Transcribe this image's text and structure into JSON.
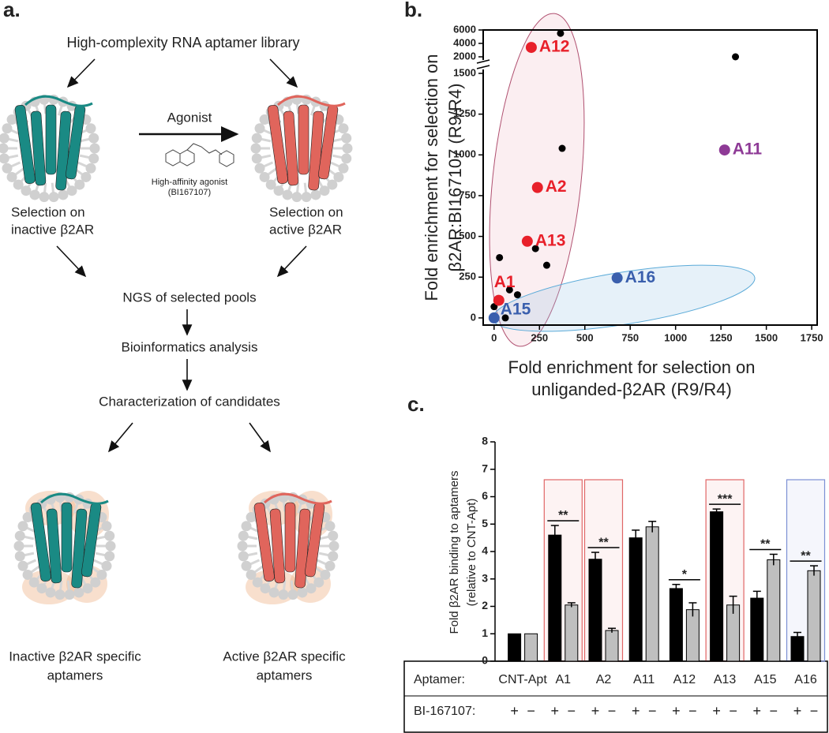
{
  "diagram": {
    "panel_label": "a.",
    "library": "High-complexity RNA aptamer library",
    "agonist": "Agonist",
    "agonist_caption": [
      "High-affinity agonist",
      "(BI167107)"
    ],
    "inactive_selection": [
      "Selection on",
      "inactive β2AR"
    ],
    "active_selection": [
      "Selection on",
      "active β2AR"
    ],
    "steps": [
      "NGS of selected pools",
      "Bioinformatics analysis",
      "Characterization of candidates"
    ],
    "inactive_result": [
      "Inactive β2AR specific",
      "aptamers"
    ],
    "active_result": [
      "Active β2AR specific",
      "aptamers"
    ]
  },
  "chart_data": [
    {
      "type": "scatter",
      "panel_label": "b.",
      "x_label": [
        "Fold enrichment for selection on",
        "unliganded-β2AR (R9/R4)"
      ],
      "y_label": [
        "Fold enrichment for selection on",
        "β2AR:BI167107 (R9/R4)"
      ],
      "xlim": [
        -60,
        1780
      ],
      "xticks": [
        0,
        250,
        500,
        750,
        1000,
        1250,
        1500,
        1750
      ],
      "ylim": [
        -44,
        6000
      ],
      "yticks": [
        0,
        250,
        500,
        750,
        1000,
        1250,
        1500,
        2000,
        4000,
        6000
      ],
      "ybreak": [
        1500,
        2000
      ],
      "series": [
        {
          "color": "#000000",
          "x": [
            366,
            1330,
            375,
            30,
            228,
            290,
            85,
            129,
            0,
            9,
            62
          ],
          "values": [
            5500,
            2000,
            1040,
            370,
            425,
            323,
            172,
            142,
            69,
            0,
            0
          ]
        },
        {
          "name": "A12",
          "color": "#e8202a",
          "x": [
            205
          ],
          "values": [
            3400
          ]
        },
        {
          "name": "A2",
          "color": "#e8202a",
          "x": [
            239
          ],
          "values": [
            800
          ]
        },
        {
          "name": "A13",
          "color": "#e8202a",
          "x": [
            183
          ],
          "values": [
            470
          ]
        },
        {
          "name": "A1",
          "color": "#e8202a",
          "x": [
            26
          ],
          "values": [
            108
          ]
        },
        {
          "name": "A15",
          "color": "#3a5fad",
          "x": [
            0
          ],
          "values": [
            0
          ]
        },
        {
          "name": "A16",
          "color": "#3a5fad",
          "x": [
            678
          ],
          "values": [
            245
          ]
        },
        {
          "name": "A11",
          "color": "#8e3a96",
          "x": [
            1270
          ],
          "values": [
            1030
          ]
        }
      ]
    },
    {
      "type": "bar",
      "panel_label": "c.",
      "y_label": [
        "Fold β2AR binding to aptamers",
        "(relative to CNT-Apt)"
      ],
      "row_labels": [
        "Aptamer:",
        "BI-167107:"
      ],
      "categories": [
        "CNT-Apt",
        "A1",
        "A2",
        "A11",
        "A12",
        "A13",
        "A15",
        "A16"
      ],
      "ylim": [
        0,
        8
      ],
      "yticks": [
        0,
        1,
        2,
        3,
        4,
        5,
        6,
        7,
        8
      ],
      "series": [
        {
          "name": "+",
          "color": "#000000",
          "values": [
            1.0,
            4.6,
            3.72,
            4.5,
            2.65,
            5.45,
            2.3,
            0.9
          ],
          "errors": [
            0,
            0.35,
            0.25,
            0.28,
            0.15,
            0.1,
            0.25,
            0.15
          ]
        },
        {
          "name": "−",
          "color": "#bfbfbf",
          "values": [
            1.0,
            2.05,
            1.12,
            4.9,
            1.88,
            2.05,
            3.7,
            3.3
          ],
          "errors": [
            0,
            0.08,
            0.08,
            0.2,
            0.25,
            0.32,
            0.2,
            0.18
          ]
        }
      ],
      "significance": [
        null,
        "**",
        "**",
        null,
        "*",
        "***",
        "**",
        "**"
      ],
      "highlight": [
        null,
        "#e06666",
        "#e06666",
        null,
        null,
        "#e06666",
        null,
        "#7b8fd4"
      ]
    }
  ]
}
